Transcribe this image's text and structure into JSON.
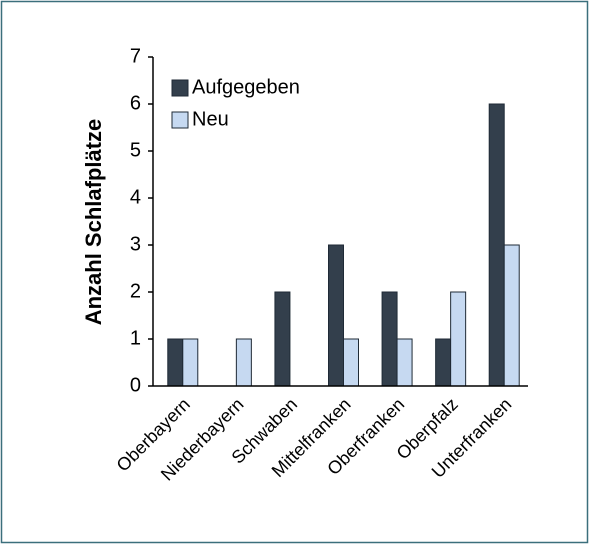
{
  "chart_data": {
    "type": "bar",
    "y_label": "Anzahl Schlafplätze",
    "categories": [
      "Oberbayern",
      "Niederbayern",
      "Schwaben",
      "Mittelfranken",
      "Oberfranken",
      "Oberpfalz",
      "Unterfranken"
    ],
    "series": [
      {
        "name": "Aufgegeben",
        "color": "#333f4c",
        "values": [
          1,
          0,
          2,
          3,
          2,
          1,
          6
        ]
      },
      {
        "name": "Neu",
        "color": "#c6d9f1",
        "values": [
          1,
          1,
          0,
          1,
          1,
          2,
          3
        ]
      }
    ],
    "ylim": [
      0,
      7
    ],
    "yticks": [
      0,
      1,
      2,
      3,
      4,
      5,
      6,
      7
    ],
    "legend": "top-left"
  }
}
